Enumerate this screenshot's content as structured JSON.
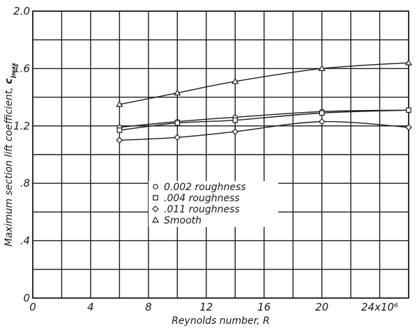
{
  "chart_data": {
    "type": "line",
    "xlabel": "Reynolds number, R",
    "ylabel": "Maximum section lift coefficient, c_l_max",
    "ylabel_main": "Maximum section lift coefficient, ",
    "ylabel_symbol": "c",
    "ylabel_sub": "l",
    "ylabel_subsub": "max",
    "xlim": [
      0,
      26
    ],
    "ylim": [
      0,
      2.0
    ],
    "x_ticks": [
      {
        "value": 0,
        "label": "0"
      },
      {
        "value": 4,
        "label": "4"
      },
      {
        "value": 8,
        "label": "8"
      },
      {
        "value": 12,
        "label": "12"
      },
      {
        "value": 16,
        "label": "16"
      },
      {
        "value": 20,
        "label": "20"
      },
      {
        "value": 24,
        "label": "24x10⁶"
      }
    ],
    "y_ticks": [
      {
        "value": 0,
        "label": "0"
      },
      {
        "value": 0.4,
        "label": ".4"
      },
      {
        "value": 0.8,
        "label": ".8"
      },
      {
        "value": 1.2,
        "label": "1.2"
      },
      {
        "value": 1.6,
        "label": "1.6"
      },
      {
        "value": 2.0,
        "label": "2.0"
      }
    ],
    "grid": true,
    "x_grid_step": 2,
    "y_grid_step": 0.2,
    "legend_position": "lower-center",
    "series": [
      {
        "name": "0.002 roughness",
        "marker": "circle",
        "x": [
          6,
          10,
          14,
          20,
          26
        ],
        "y": [
          1.19,
          1.23,
          1.26,
          1.3,
          1.31
        ]
      },
      {
        "name": ".004 roughness",
        "marker": "square",
        "x": [
          6,
          10,
          14,
          20,
          26
        ],
        "y": [
          1.17,
          1.22,
          1.24,
          1.29,
          1.31
        ]
      },
      {
        "name": ".011 roughness",
        "marker": "diamond",
        "x": [
          6,
          10,
          14,
          20,
          26
        ],
        "y": [
          1.1,
          1.12,
          1.16,
          1.23,
          1.19
        ]
      },
      {
        "name": "Smooth",
        "marker": "triangle",
        "x": [
          6,
          10,
          14,
          20,
          26
        ],
        "y": [
          1.35,
          1.43,
          1.51,
          1.6,
          1.64
        ]
      }
    ]
  }
}
